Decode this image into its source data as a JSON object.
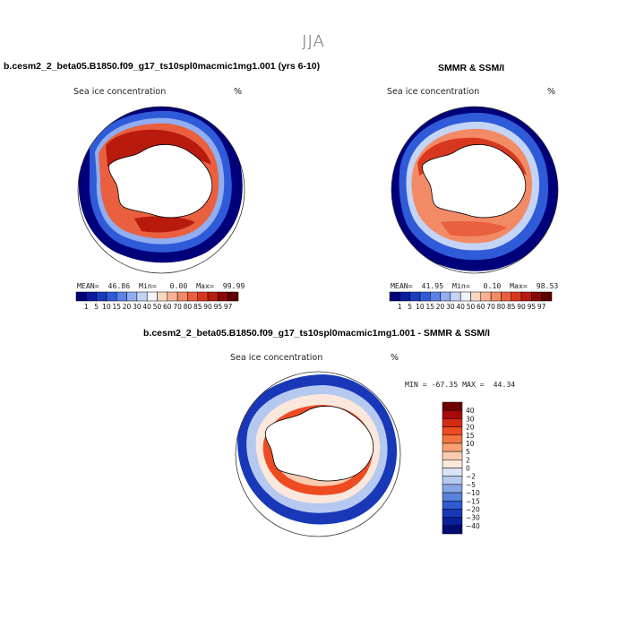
{
  "figure": {
    "season": "JJA",
    "left_title": "b.cesm2_2_beta05.B1850.f09_g17_ts10spl0macmic1mg1.001 (yrs 6-10)",
    "right_title": "SMMR & SSM/I",
    "diff_title": "b.cesm2_2_beta05.B1850.f09_g17_ts10spl0macmic1mg1.001 - SMMR & SSM/I"
  },
  "panel_model": {
    "label": "Sea ice concentration",
    "units": "%",
    "mean_label": "MEAN=",
    "mean": "46.86",
    "min_label": "Min=",
    "min": "0.00",
    "max_label": "Max=",
    "max": "99.99"
  },
  "panel_obs": {
    "label": "Sea ice concentration",
    "units": "%",
    "mean_label": "MEAN=",
    "mean": "41.95",
    "min_label": "Min=",
    "min": "0.10",
    "max_label": "Max=",
    "max": "98.53"
  },
  "panel_diff": {
    "label": "Sea ice concentration",
    "units": "%",
    "minmax": "MIN = -67.35 MAX =  44.34"
  },
  "chart_data": [
    {
      "type": "heatmap",
      "title": "b.cesm2_2_beta05.B1850.f09_g17_ts10spl0macmic1mg1.001 (yrs 6-10)",
      "variable": "Sea ice concentration",
      "units": "%",
      "projection": "south polar stereographic",
      "stats": {
        "mean": 46.86,
        "min": 0.0,
        "max": 99.99
      },
      "contour_levels": [
        1,
        5,
        10,
        15,
        20,
        30,
        40,
        50,
        60,
        70,
        80,
        85,
        90,
        95,
        97
      ],
      "tick_labels": [
        "1",
        "5",
        "10",
        "15",
        "20",
        "30",
        "40",
        "50",
        "60",
        "70",
        "80",
        "85",
        "90",
        "95",
        "97"
      ],
      "colors": [
        "#00007a",
        "#0a1b9e",
        "#1a3bc0",
        "#2f5ad8",
        "#5b82e6",
        "#90aef0",
        "#c3d4f7",
        "#f2f3fb",
        "#fbd6c3",
        "#f8b193",
        "#f38a66",
        "#ea603e",
        "#d8371f",
        "#b81a0e",
        "#8a0707",
        "#5e0000"
      ]
    },
    {
      "type": "heatmap",
      "title": "SMMR & SSM/I",
      "variable": "Sea ice concentration",
      "units": "%",
      "projection": "south polar stereographic",
      "stats": {
        "mean": 41.95,
        "min": 0.1,
        "max": 98.53
      },
      "contour_levels": [
        1,
        5,
        10,
        15,
        20,
        30,
        40,
        50,
        60,
        70,
        80,
        85,
        90,
        95,
        97
      ],
      "tick_labels": [
        "1",
        "5",
        "10",
        "15",
        "20",
        "30",
        "40",
        "50",
        "60",
        "70",
        "80",
        "85",
        "90",
        "95",
        "97"
      ],
      "colors": [
        "#00007a",
        "#0a1b9e",
        "#1a3bc0",
        "#2f5ad8",
        "#5b82e6",
        "#90aef0",
        "#c3d4f7",
        "#f2f3fb",
        "#fbd6c3",
        "#f8b193",
        "#f38a66",
        "#ea603e",
        "#d8371f",
        "#b81a0e",
        "#8a0707",
        "#5e0000"
      ]
    },
    {
      "type": "heatmap",
      "title": "b.cesm2_2_beta05.B1850.f09_g17_ts10spl0macmic1mg1.001 - SMMR & SSM/I",
      "variable": "Sea ice concentration",
      "units": "%",
      "projection": "south polar stereographic",
      "stats": {
        "min": -67.35,
        "max": 44.34
      },
      "contour_levels": [
        -40,
        -30,
        -20,
        -15,
        -10,
        -5,
        -2,
        0,
        2,
        5,
        10,
        15,
        20,
        30,
        40
      ],
      "tick_labels_top_to_bottom": [
        "40",
        "30",
        "20",
        "15",
        "10",
        "5",
        "2",
        "0",
        "−2",
        "−5",
        "−10",
        "−15",
        "−20",
        "−30",
        "−40"
      ],
      "colors_top_to_bottom": [
        "#700000",
        "#a80a0a",
        "#d42a14",
        "#ee4b22",
        "#f6743f",
        "#f9a173",
        "#fbcbb0",
        "#fbe7dc",
        "#dbe4f7",
        "#b5c9f0",
        "#88a6e6",
        "#5b82db",
        "#2f5ad0",
        "#1838b8",
        "#0a1f9a",
        "#000a70"
      ]
    }
  ]
}
